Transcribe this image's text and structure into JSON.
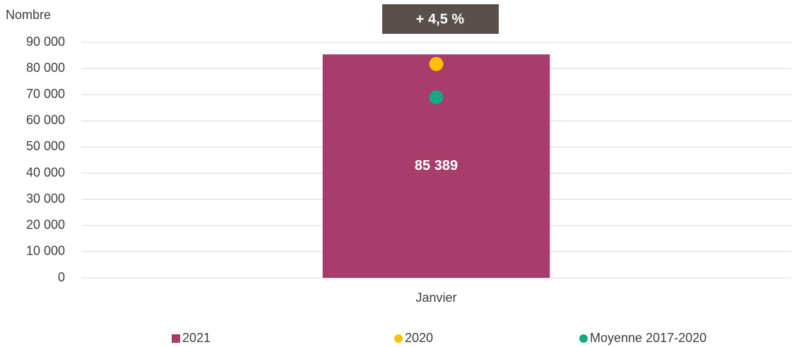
{
  "chart_data": {
    "type": "bar",
    "y_label": "Nombre",
    "annotation": "+ 4,5 %",
    "categories": [
      "Janvier"
    ],
    "series": [
      {
        "name": "2021",
        "color": "#a83c6a",
        "type": "bar",
        "values": [
          85389
        ],
        "value_labels": [
          "85 389"
        ]
      },
      {
        "name": "2020",
        "color": "#ffc000",
        "type": "dot",
        "values": [
          81712
        ]
      },
      {
        "name": "Moyenne 2017-2020",
        "color": "#13a887",
        "type": "dot",
        "values": [
          69000
        ]
      }
    ],
    "ylim": [
      0,
      90000
    ],
    "yticks": [
      0,
      {
        "value": 10000,
        "label": "10 000"
      },
      {
        "value": 20000,
        "label": "20 000"
      },
      {
        "value": 30000,
        "label": "30 000"
      },
      {
        "value": 40000,
        "label": "40 000"
      },
      {
        "value": 50000,
        "label": "50 000"
      },
      {
        "value": 60000,
        "label": "60 000"
      },
      {
        "value": 70000,
        "label": "70 000"
      },
      {
        "value": 80000,
        "label": "80 000"
      },
      {
        "value": 90000,
        "label": "90 000"
      }
    ],
    "grid": true,
    "legend": "bottom"
  }
}
